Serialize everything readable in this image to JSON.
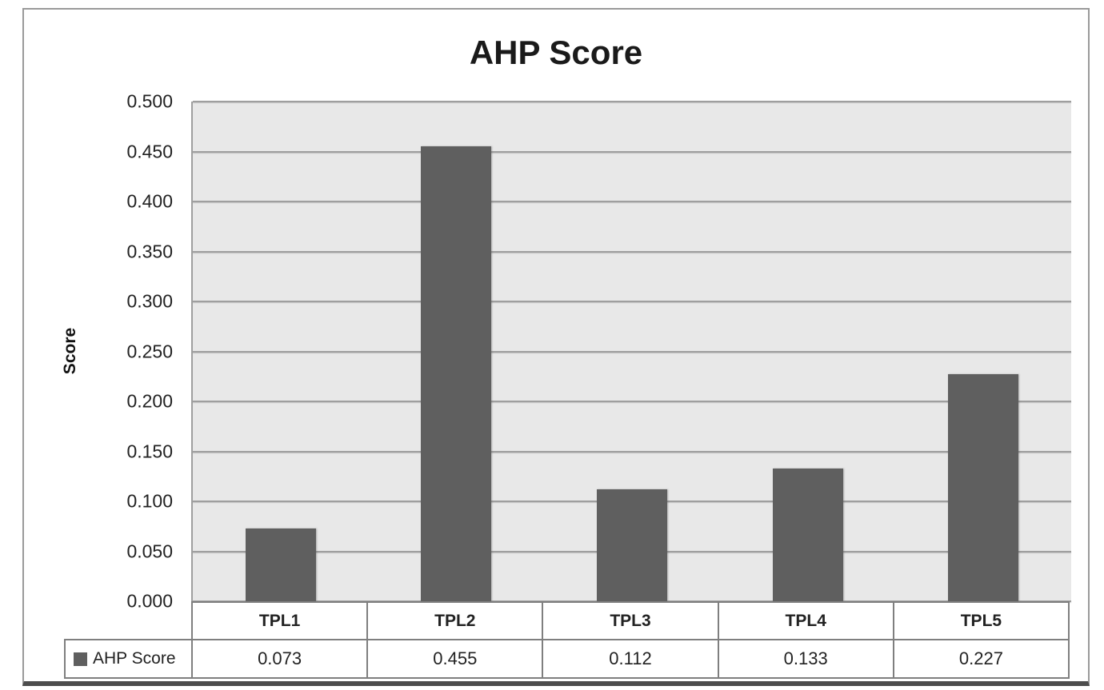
{
  "chart_data": {
    "type": "bar",
    "title": "AHP Score",
    "xlabel": "",
    "ylabel": "Score",
    "series_name": "AHP Score",
    "categories": [
      "TPL1",
      "TPL2",
      "TPL3",
      "TPL4",
      "TPL5"
    ],
    "values": [
      0.073,
      0.455,
      0.112,
      0.133,
      0.227
    ],
    "value_labels": [
      "0.073",
      "0.455",
      "0.112",
      "0.133",
      "0.227"
    ],
    "ylim": [
      0.0,
      0.5
    ],
    "ytick_labels": [
      "0.500",
      "0.450",
      "0.400",
      "0.350",
      "0.300",
      "0.250",
      "0.200",
      "0.150",
      "0.100",
      "0.050",
      "0.000"
    ],
    "grid": true,
    "legend_position": "bottom-left data table",
    "colors": {
      "bar": "#5f5f5f",
      "plot_background": "#e8e8e8",
      "gridline": "#9f9f9f",
      "table_border": "#7f7f7f",
      "legend_swatch": "#5f5f5f",
      "frame_border": "#9a9a9a",
      "title": "#1a1a1a"
    }
  }
}
